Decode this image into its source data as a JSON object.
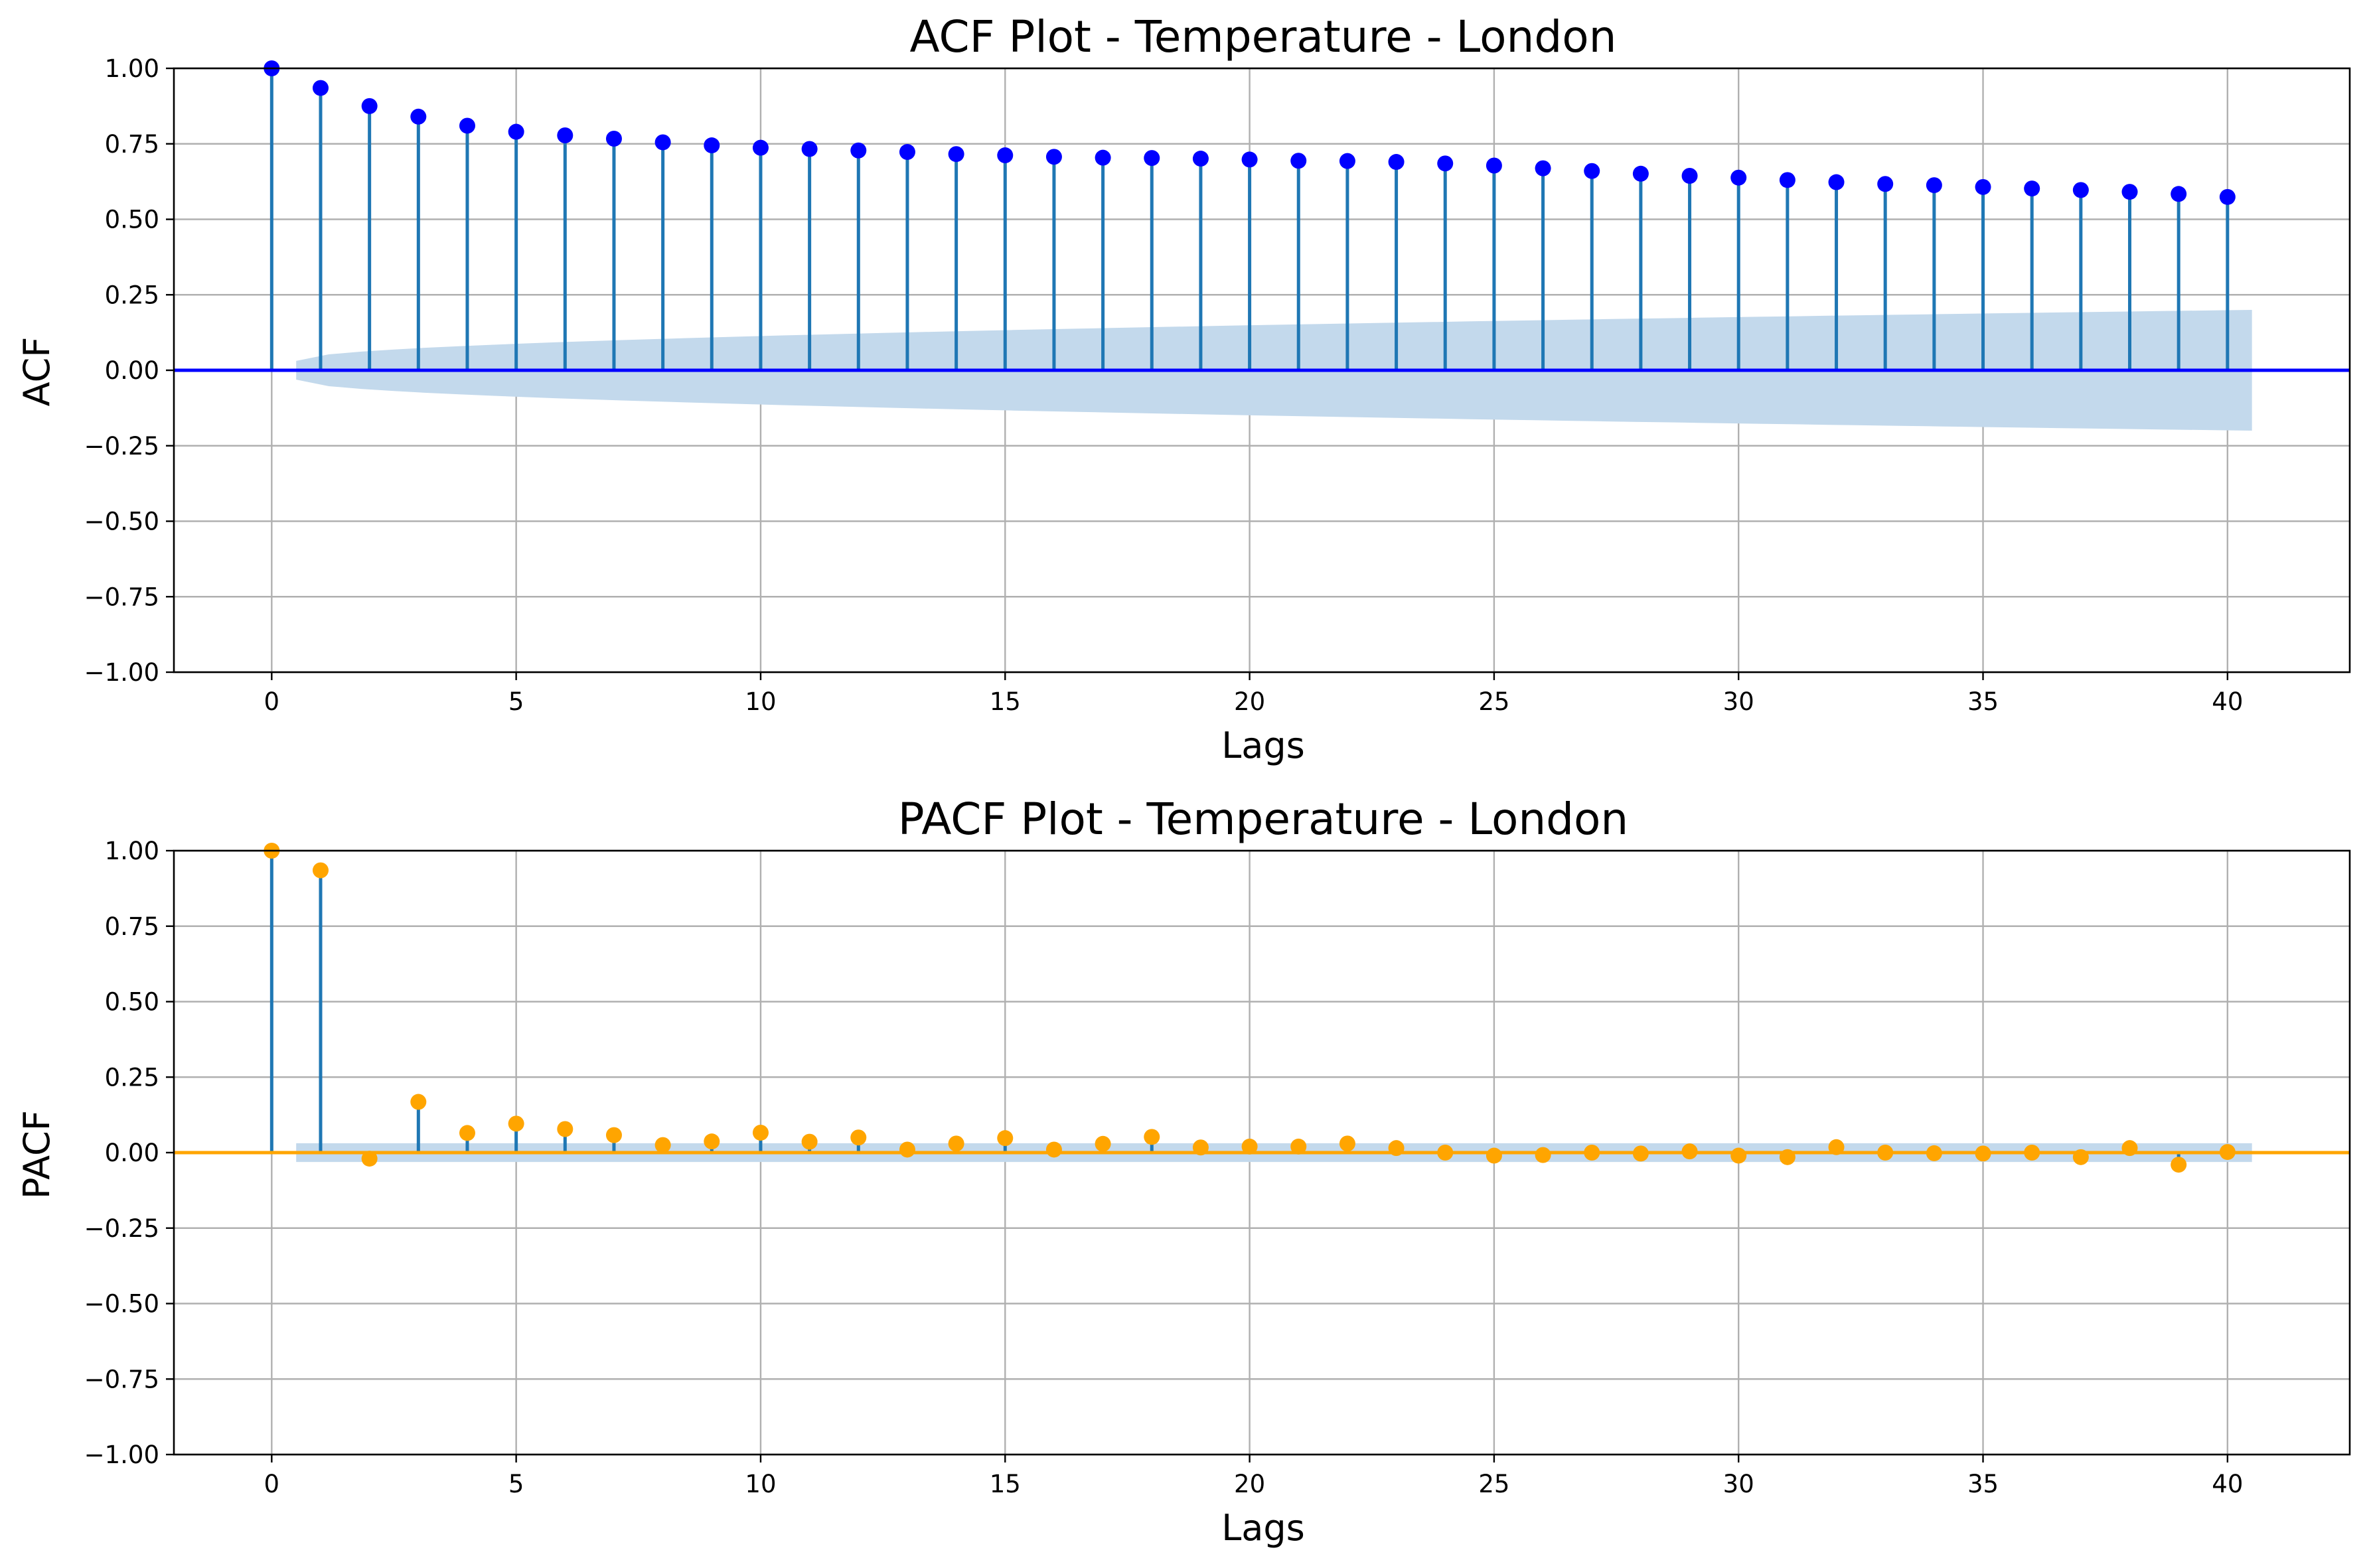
{
  "chart_data": [
    {
      "type": "stem",
      "title": "ACF Plot - Temperature - London",
      "xlabel": "Lags",
      "ylabel": "ACF",
      "xlim": [
        -2,
        42.5
      ],
      "ylim": [
        -1.0,
        1.0
      ],
      "xticks": [
        0,
        5,
        10,
        15,
        20,
        25,
        30,
        35,
        40
      ],
      "yticks": [
        "1.00",
        "0.75",
        "0.50",
        "0.25",
        "0.00",
        "−0.25",
        "−0.50",
        "−0.75",
        "−1.00"
      ],
      "ytick_values": [
        1.0,
        0.75,
        0.5,
        0.25,
        0.0,
        -0.25,
        -0.5,
        -0.75,
        -1.0
      ],
      "grid": true,
      "stem_color": "#1f77b4",
      "marker_color": "#0000ff",
      "baseline_color": "#0000ff",
      "band_color": "#c3d9ec",
      "lags": [
        0,
        1,
        2,
        3,
        4,
        5,
        6,
        7,
        8,
        9,
        10,
        11,
        12,
        13,
        14,
        15,
        16,
        17,
        18,
        19,
        20,
        21,
        22,
        23,
        24,
        25,
        26,
        27,
        28,
        29,
        30,
        31,
        32,
        33,
        34,
        35,
        36,
        37,
        38,
        39,
        40
      ],
      "values": [
        1.0,
        0.935,
        0.875,
        0.84,
        0.81,
        0.79,
        0.778,
        0.767,
        0.755,
        0.745,
        0.737,
        0.733,
        0.728,
        0.723,
        0.716,
        0.712,
        0.707,
        0.704,
        0.703,
        0.701,
        0.698,
        0.694,
        0.693,
        0.69,
        0.685,
        0.678,
        0.669,
        0.66,
        0.651,
        0.644,
        0.638,
        0.63,
        0.623,
        0.617,
        0.613,
        0.607,
        0.602,
        0.597,
        0.591,
        0.584,
        0.574
      ],
      "conf_band": {
        "x_start": 0.5,
        "x_end": 40.5,
        "upper_start": 0.031,
        "upper_end": 0.2
      }
    },
    {
      "type": "stem",
      "title": "PACF Plot - Temperature - London",
      "xlabel": "Lags",
      "ylabel": "PACF",
      "xlim": [
        -2,
        42.5
      ],
      "ylim": [
        -1.0,
        1.0
      ],
      "xticks": [
        0,
        5,
        10,
        15,
        20,
        25,
        30,
        35,
        40
      ],
      "yticks": [
        "1.00",
        "0.75",
        "0.50",
        "0.25",
        "0.00",
        "−0.25",
        "−0.50",
        "−0.75",
        "−1.00"
      ],
      "ytick_values": [
        1.0,
        0.75,
        0.5,
        0.25,
        0.0,
        -0.25,
        -0.5,
        -0.75,
        -1.0
      ],
      "grid": true,
      "stem_color": "#1f77b4",
      "marker_color": "#ffa500",
      "baseline_color": "#ffa500",
      "band_color": "#c3d9ec",
      "lags": [
        0,
        1,
        2,
        3,
        4,
        5,
        6,
        7,
        8,
        9,
        10,
        11,
        12,
        13,
        14,
        15,
        16,
        17,
        18,
        19,
        20,
        21,
        22,
        23,
        24,
        25,
        26,
        27,
        28,
        29,
        30,
        31,
        32,
        33,
        34,
        35,
        36,
        37,
        38,
        39,
        40
      ],
      "values": [
        1.0,
        0.935,
        -0.02,
        0.168,
        0.065,
        0.096,
        0.078,
        0.058,
        0.025,
        0.037,
        0.066,
        0.036,
        0.05,
        0.01,
        0.03,
        0.048,
        0.01,
        0.029,
        0.052,
        0.017,
        0.02,
        0.02,
        0.03,
        0.015,
        0.0,
        -0.01,
        -0.008,
        0.0,
        -0.003,
        0.004,
        -0.01,
        -0.015,
        0.018,
        0.0,
        -0.002,
        -0.003,
        0.0,
        -0.015,
        0.015,
        -0.04,
        0.002
      ],
      "conf_band": {
        "x_start": 0.5,
        "x_end": 40.5,
        "upper_start": 0.031,
        "upper_end": 0.031
      }
    }
  ]
}
